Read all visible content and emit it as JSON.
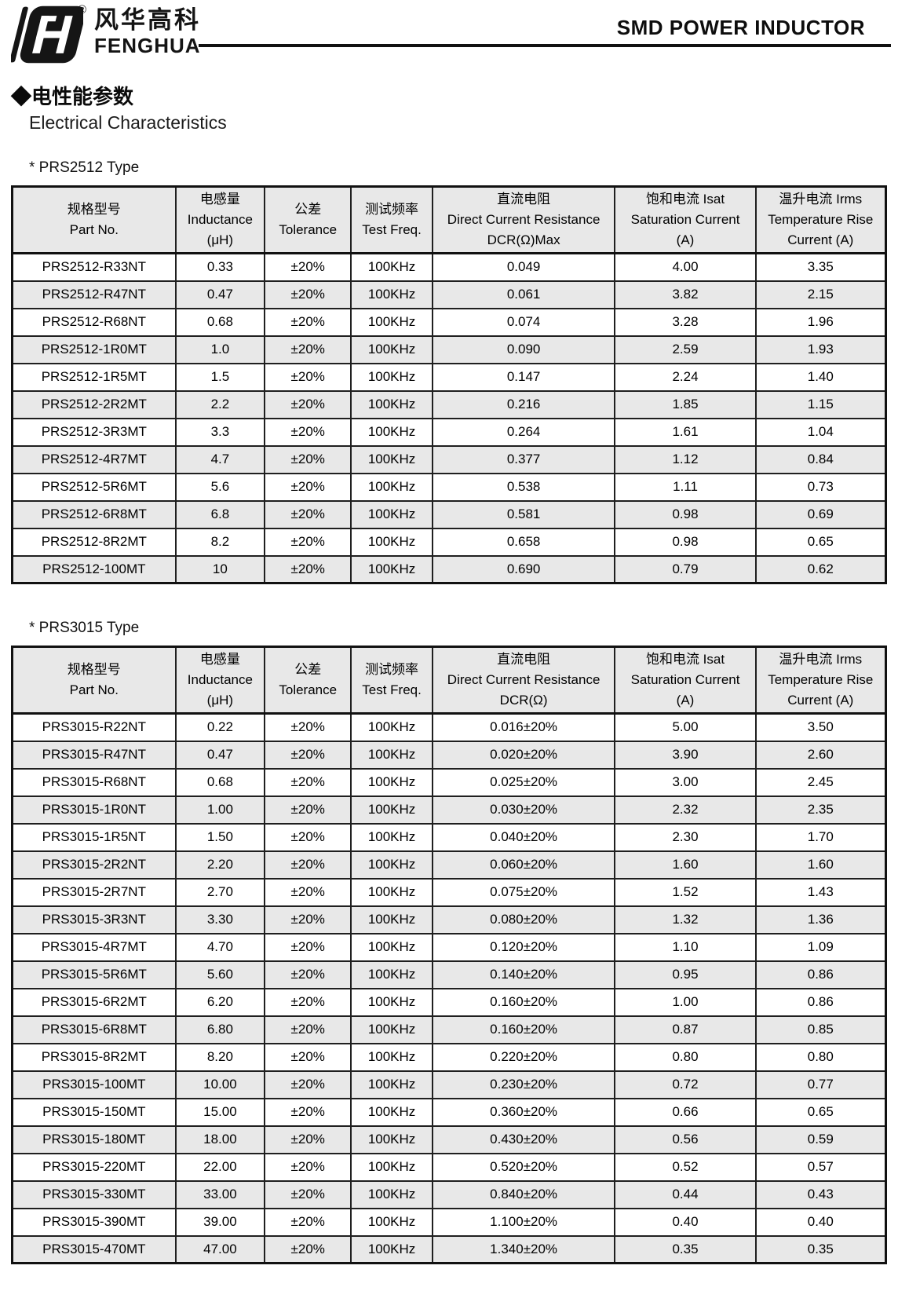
{
  "page": {
    "brand": {
      "logo_mark": "fenghua-monogram",
      "registered_mark": "®",
      "name_cn": "风华高科",
      "name_en": "FENGHUA"
    },
    "doc_title": "SMD POWER INDUCTOR",
    "section": {
      "heading_cn": "◆电性能参数",
      "heading_en": "Electrical Characteristics"
    }
  },
  "colors": {
    "ink_black": "#111111",
    "table_header_bg": "#e8e8e8",
    "row_stripe_bg": "#e8e8e8"
  },
  "tables": [
    {
      "label": "* PRS2512 Type",
      "columns": [
        {
          "lines": [
            "规格型号",
            "Part No."
          ]
        },
        {
          "lines": [
            "电感量",
            "Inductance",
            "(μH)"
          ]
        },
        {
          "lines": [
            "公差",
            "Tolerance"
          ]
        },
        {
          "lines": [
            "测试频率",
            "Test Freq."
          ]
        },
        {
          "lines": [
            "直流电阻",
            "Direct Current Resistance",
            "DCR(Ω)Max"
          ]
        },
        {
          "lines": [
            "饱和电流  Isat",
            "Saturation Current",
            "(A)"
          ]
        },
        {
          "lines": [
            "温升电流  Irms",
            "Temperature Rise",
            "Current (A)"
          ]
        }
      ],
      "rows": [
        [
          "PRS2512-R33NT",
          "0.33",
          "±20%",
          "100KHz",
          "0.049",
          "4.00",
          "3.35"
        ],
        [
          "PRS2512-R47NT",
          "0.47",
          "±20%",
          "100KHz",
          "0.061",
          "3.82",
          "2.15"
        ],
        [
          "PRS2512-R68NT",
          "0.68",
          "±20%",
          "100KHz",
          "0.074",
          "3.28",
          "1.96"
        ],
        [
          "PRS2512-1R0MT",
          "1.0",
          "±20%",
          "100KHz",
          "0.090",
          "2.59",
          "1.93"
        ],
        [
          "PRS2512-1R5MT",
          "1.5",
          "±20%",
          "100KHz",
          "0.147",
          "2.24",
          "1.40"
        ],
        [
          "PRS2512-2R2MT",
          "2.2",
          "±20%",
          "100KHz",
          "0.216",
          "1.85",
          "1.15"
        ],
        [
          "PRS2512-3R3MT",
          "3.3",
          "±20%",
          "100KHz",
          "0.264",
          "1.61",
          "1.04"
        ],
        [
          "PRS2512-4R7MT",
          "4.7",
          "±20%",
          "100KHz",
          "0.377",
          "1.12",
          "0.84"
        ],
        [
          "PRS2512-5R6MT",
          "5.6",
          "±20%",
          "100KHz",
          "0.538",
          "1.11",
          "0.73"
        ],
        [
          "PRS2512-6R8MT",
          "6.8",
          "±20%",
          "100KHz",
          "0.581",
          "0.98",
          "0.69"
        ],
        [
          "PRS2512-8R2MT",
          "8.2",
          "±20%",
          "100KHz",
          "0.658",
          "0.98",
          "0.65"
        ],
        [
          "PRS2512-100MT",
          "10",
          "±20%",
          "100KHz",
          "0.690",
          "0.79",
          "0.62"
        ]
      ]
    },
    {
      "label": "* PRS3015 Type",
      "columns": [
        {
          "lines": [
            "规格型号",
            "Part No."
          ]
        },
        {
          "lines": [
            "电感量",
            "Inductance",
            "(μH)"
          ]
        },
        {
          "lines": [
            "公差",
            "Tolerance"
          ]
        },
        {
          "lines": [
            "测试频率",
            "Test Freq."
          ]
        },
        {
          "lines": [
            "直流电阻",
            "Direct Current Resistance",
            "DCR(Ω)"
          ]
        },
        {
          "lines": [
            "饱和电流  Isat",
            "Saturation Current",
            "(A)"
          ]
        },
        {
          "lines": [
            "温升电流  Irms",
            "Temperature Rise",
            "Current (A)"
          ]
        }
      ],
      "rows": [
        [
          "PRS3015-R22NT",
          "0.22",
          "±20%",
          "100KHz",
          "0.016±20%",
          "5.00",
          "3.50"
        ],
        [
          "PRS3015-R47NT",
          "0.47",
          "±20%",
          "100KHz",
          "0.020±20%",
          "3.90",
          "2.60"
        ],
        [
          "PRS3015-R68NT",
          "0.68",
          "±20%",
          "100KHz",
          "0.025±20%",
          "3.00",
          "2.45"
        ],
        [
          "PRS3015-1R0NT",
          "1.00",
          "±20%",
          "100KHz",
          "0.030±20%",
          "2.32",
          "2.35"
        ],
        [
          "PRS3015-1R5NT",
          "1.50",
          "±20%",
          "100KHz",
          "0.040±20%",
          "2.30",
          "1.70"
        ],
        [
          "PRS3015-2R2NT",
          "2.20",
          "±20%",
          "100KHz",
          "0.060±20%",
          "1.60",
          "1.60"
        ],
        [
          "PRS3015-2R7NT",
          "2.70",
          "±20%",
          "100KHz",
          "0.075±20%",
          "1.52",
          "1.43"
        ],
        [
          "PRS3015-3R3NT",
          "3.30",
          "±20%",
          "100KHz",
          "0.080±20%",
          "1.32",
          "1.36"
        ],
        [
          "PRS3015-4R7MT",
          "4.70",
          "±20%",
          "100KHz",
          "0.120±20%",
          "1.10",
          "1.09"
        ],
        [
          "PRS3015-5R6MT",
          "5.60",
          "±20%",
          "100KHz",
          "0.140±20%",
          "0.95",
          "0.86"
        ],
        [
          "PRS3015-6R2MT",
          "6.20",
          "±20%",
          "100KHz",
          "0.160±20%",
          "1.00",
          "0.86"
        ],
        [
          "PRS3015-6R8MT",
          "6.80",
          "±20%",
          "100KHz",
          "0.160±20%",
          "0.87",
          "0.85"
        ],
        [
          "PRS3015-8R2MT",
          "8.20",
          "±20%",
          "100KHz",
          "0.220±20%",
          "0.80",
          "0.80"
        ],
        [
          "PRS3015-100MT",
          "10.00",
          "±20%",
          "100KHz",
          "0.230±20%",
          "0.72",
          "0.77"
        ],
        [
          "PRS3015-150MT",
          "15.00",
          "±20%",
          "100KHz",
          "0.360±20%",
          "0.66",
          "0.65"
        ],
        [
          "PRS3015-180MT",
          "18.00",
          "±20%",
          "100KHz",
          "0.430±20%",
          "0.56",
          "0.59"
        ],
        [
          "PRS3015-220MT",
          "22.00",
          "±20%",
          "100KHz",
          "0.520±20%",
          "0.52",
          "0.57"
        ],
        [
          "PRS3015-330MT",
          "33.00",
          "±20%",
          "100KHz",
          "0.840±20%",
          "0.44",
          "0.43"
        ],
        [
          "PRS3015-390MT",
          "39.00",
          "±20%",
          "100KHz",
          "1.100±20%",
          "0.40",
          "0.40"
        ],
        [
          "PRS3015-470MT",
          "47.00",
          "±20%",
          "100KHz",
          "1.340±20%",
          "0.35",
          "0.35"
        ]
      ]
    }
  ]
}
